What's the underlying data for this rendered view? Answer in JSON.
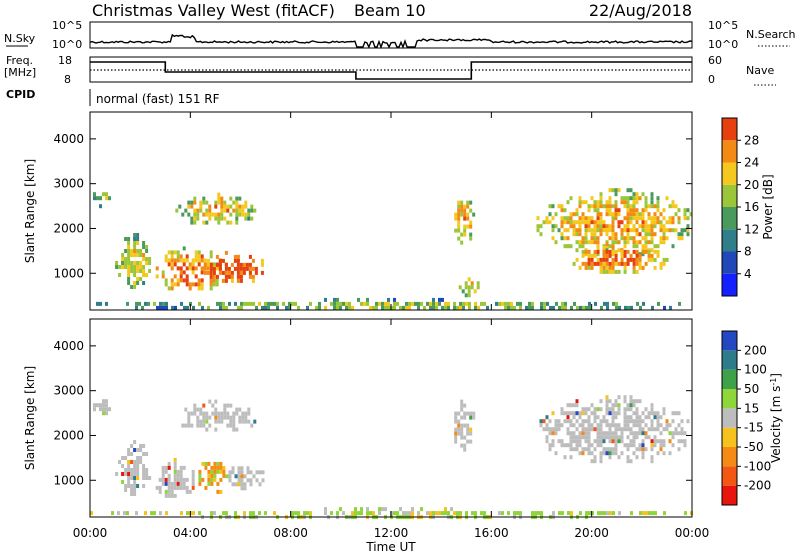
{
  "header": {
    "site": "Christmas Valley West (fitACF)",
    "beam": "Beam 10",
    "date": "22/Aug/2018"
  },
  "top_panels": {
    "nsky_label": "N.Sky",
    "nsky_tick_hi": "10^5",
    "nsky_tick_lo": "10^0",
    "nsearch_label": "N.Search",
    "nsearch_tick_hi": "10^5",
    "nsearch_tick_lo": "10^0",
    "freq_label_1": "Freq.",
    "freq_label_2": "[MHz]",
    "freq_tick_hi": "18",
    "freq_tick_lo": "8",
    "nave_label": "Nave",
    "nave_tick_hi": "60",
    "nave_tick_lo": "0",
    "cpid_label": "CPID",
    "cpid_text": "normal (fast) 151 RF"
  },
  "chart_data": [
    {
      "type": "heatmap",
      "name": "power",
      "xlabel": "",
      "ylabel": "Slant Range [km]",
      "x_ticks": [
        "00:00",
        "04:00",
        "08:00",
        "12:00",
        "16:00",
        "20:00",
        "00:00"
      ],
      "y_ticks": [
        1000,
        2000,
        3000,
        4000
      ],
      "ylim": [
        180,
        4600
      ],
      "colorbar": {
        "label": "Power [dB]",
        "ticks": [
          4,
          8,
          12,
          16,
          20,
          24,
          28
        ],
        "range": [
          0,
          32
        ],
        "colors": [
          "#1420ff",
          "#2048b8",
          "#2f7e8a",
          "#4a9a5e",
          "#9cc63a",
          "#f4c81e",
          "#f28a14",
          "#e6400e"
        ]
      },
      "patches": [
        {
          "t_hours": [
            0.0,
            0.9
          ],
          "range_km": [
            2500,
            2900
          ],
          "level_db": 11
        },
        {
          "t_hours": [
            1.0,
            2.4
          ],
          "range_km": [
            700,
            1900
          ],
          "level_db": 14
        },
        {
          "t_hours": [
            2.5,
            5.4
          ],
          "range_km": [
            600,
            1600
          ],
          "level_db": 20
        },
        {
          "t_hours": [
            4.3,
            7.0
          ],
          "range_km": [
            800,
            1500
          ],
          "level_db": 24
        },
        {
          "t_hours": [
            3.4,
            6.6
          ],
          "range_km": [
            2100,
            2800
          ],
          "level_db": 16
        },
        {
          "t_hours": [
            14.4,
            15.3
          ],
          "range_km": [
            1700,
            2800
          ],
          "level_db": 17
        },
        {
          "t_hours": [
            14.7,
            15.5
          ],
          "range_km": [
            500,
            1000
          ],
          "level_db": 14
        },
        {
          "t_hours": [
            17.8,
            24.0
          ],
          "range_km": [
            1400,
            2900
          ],
          "level_db": 17
        },
        {
          "t_hours": [
            19.0,
            23.0
          ],
          "range_km": [
            1000,
            1700
          ],
          "level_db": 20
        },
        {
          "t_hours": [
            0.0,
            24.0
          ],
          "range_km": [
            200,
            450
          ],
          "level_db": 10
        }
      ]
    },
    {
      "type": "heatmap",
      "name": "velocity",
      "xlabel": "Time UT",
      "ylabel": "Slant Range [km]",
      "x_ticks": [
        "00:00",
        "04:00",
        "08:00",
        "12:00",
        "16:00",
        "20:00",
        "00:00"
      ],
      "y_ticks": [
        1000,
        2000,
        3000,
        4000
      ],
      "ylim": [
        180,
        4600
      ],
      "colorbar": {
        "label": "Velocity [m s^-1]",
        "ticks": [
          -200,
          -100,
          -50,
          -15,
          15,
          50,
          100,
          200
        ],
        "tick_labels": [
          "-200",
          "-100",
          "-50",
          "-15",
          "15",
          "50",
          "100",
          "200"
        ],
        "colors": [
          "#e8140e",
          "#f25814",
          "#f58a14",
          "#f5c21e",
          "#bdbdbd",
          "#8ed63a",
          "#3fa24a",
          "#2e7b8c",
          "#2448c2"
        ]
      },
      "patches": [
        {
          "t_hours": [
            0.0,
            0.9
          ],
          "range_km": [
            2500,
            2900
          ],
          "level": "ground"
        },
        {
          "t_hours": [
            1.0,
            2.4
          ],
          "range_km": [
            700,
            1900
          ],
          "level": "ground"
        },
        {
          "t_hours": [
            2.5,
            4.2
          ],
          "range_km": [
            600,
            1500
          ],
          "level": "ground"
        },
        {
          "t_hours": [
            4.2,
            5.4
          ],
          "range_km": [
            700,
            1500
          ],
          "level": "-50"
        },
        {
          "t_hours": [
            5.4,
            7.0
          ],
          "range_km": [
            800,
            1400
          ],
          "level": "ground"
        },
        {
          "t_hours": [
            3.4,
            6.6
          ],
          "range_km": [
            2100,
            2800
          ],
          "level": "ground"
        },
        {
          "t_hours": [
            14.4,
            15.3
          ],
          "range_km": [
            1700,
            2800
          ],
          "level": "ground"
        },
        {
          "t_hours": [
            17.8,
            24.0
          ],
          "range_km": [
            1400,
            2900
          ],
          "level": "ground"
        },
        {
          "t_hours": [
            0.0,
            24.0
          ],
          "range_km": [
            200,
            400
          ],
          "level": "50"
        }
      ]
    }
  ]
}
